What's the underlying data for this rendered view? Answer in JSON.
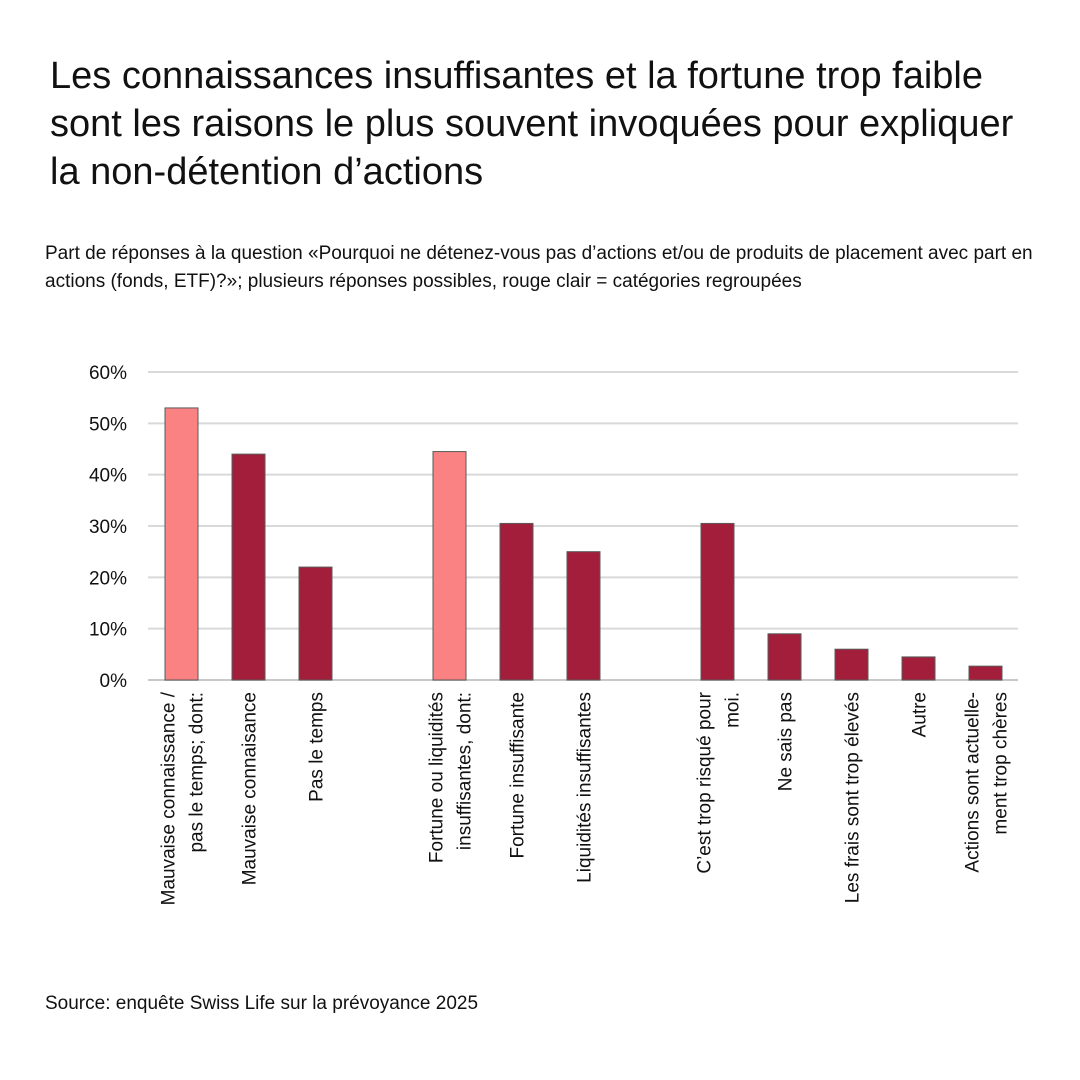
{
  "title": "Les connaissances insuffisantes et la fortune trop faible sont les raisons le plus souvent invoquées pour expliquer la non-détention d’actions",
  "subtitle": "Part de réponses à la question «Pourquoi ne détenez-vous pas d’actions et/ou de produits de placement avec part en actions (fonds, ETF)?»; plusieurs réponses possibles, rouge clair = catégories regroupées",
  "source": "Source: enquête Swiss Life sur la prévoyance 2025",
  "colors": {
    "dark": "#a21e3b",
    "light": "#fb8283",
    "grid": "#d9d9d9",
    "text": "#111111"
  },
  "chart_data": {
    "type": "bar",
    "ylim": [
      0,
      60
    ],
    "yticks": [
      0,
      10,
      20,
      30,
      40,
      50,
      60
    ],
    "ytick_labels": [
      "0%",
      "10%",
      "20%",
      "30%",
      "40%",
      "50%",
      "60%"
    ],
    "grid": true,
    "legend": "none",
    "categories": [
      "Mauvaise connaissance / pas le temps; dont:",
      "Mauvaise connaisance",
      "Pas le temps",
      "",
      "Fortune ou liquidités insuffisantes, dont:",
      "Fortune insuffisante",
      "Liquidités insuffisantes",
      "",
      "C’est trop risqué pour moi.",
      "Ne sais pas",
      "Les frais sont trop élevés",
      "Autre",
      "Actions sont actuellement trop chères"
    ],
    "category_label_lines": [
      [
        "Mauvaise connaissance /",
        "pas le temps; dont:"
      ],
      [
        "Mauvaise connaisance"
      ],
      [
        "Pas le temps"
      ],
      [],
      [
        "Fortune ou liquidités",
        "insuffisantes, dont:"
      ],
      [
        "Fortune insuffisante"
      ],
      [
        "Liquidités insuffisantes"
      ],
      [],
      [
        "C’est trop risqué pour",
        "moi."
      ],
      [
        "Ne sais pas"
      ],
      [
        "Les frais sont trop élevés"
      ],
      [
        "Autre"
      ],
      [
        "Actions sont actuelle-",
        "ment trop chères"
      ]
    ],
    "values": [
      53,
      44,
      22,
      null,
      44.5,
      30.5,
      25,
      null,
      30.5,
      9,
      6,
      4.5,
      2.7
    ],
    "grouped": [
      true,
      false,
      false,
      false,
      true,
      false,
      false,
      false,
      false,
      false,
      false,
      false,
      false
    ]
  }
}
